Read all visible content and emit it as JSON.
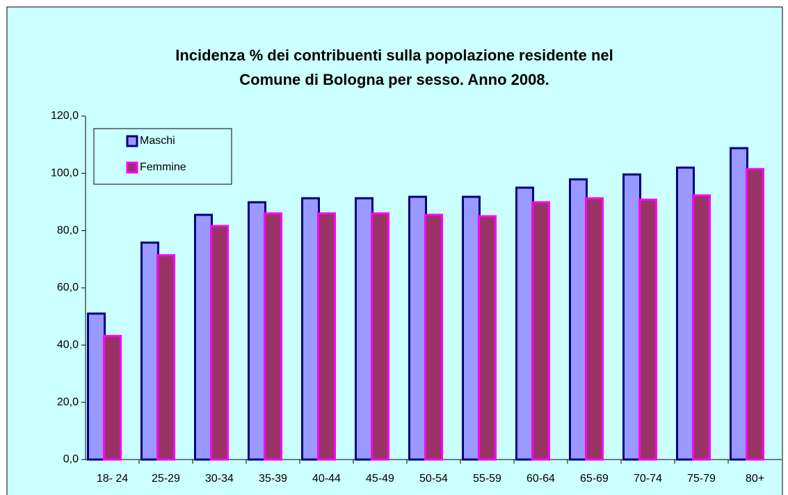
{
  "chart_data": {
    "type": "bar",
    "title": [
      "Incidenza % dei contribuenti sulla popolazione residente nel",
      "Comune di Bologna per sesso. Anno 2008."
    ],
    "categories": [
      "18- 24",
      "25-29",
      "30-34",
      "35-39",
      "40-44",
      "45-49",
      "50-54",
      "55-59",
      "60-64",
      "65-69",
      "70-74",
      "75-79",
      "80+"
    ],
    "series": [
      {
        "name": "Maschi",
        "color": "#9999ff",
        "border": "#000080",
        "values": [
          51.0,
          75.8,
          85.5,
          89.9,
          91.3,
          91.3,
          91.8,
          91.8,
          95.0,
          97.9,
          99.6,
          102.0,
          108.8
        ]
      },
      {
        "name": "Femmine",
        "color": "#993366",
        "border": "#ff00ff",
        "values": [
          43.2,
          71.4,
          81.6,
          86.0,
          86.0,
          86.0,
          85.5,
          85.0,
          89.9,
          91.3,
          90.8,
          92.3,
          101.5
        ]
      }
    ],
    "ylim": [
      0,
      120
    ],
    "yticks": [
      {
        "value": 0,
        "label": "0,0"
      },
      {
        "value": 20,
        "label": "20,0"
      },
      {
        "value": 40,
        "label": "40,0"
      },
      {
        "value": 60,
        "label": "60,0"
      },
      {
        "value": 80,
        "label": "80,0"
      },
      {
        "value": 100,
        "label": "100,0"
      },
      {
        "value": 120,
        "label": "120,0"
      }
    ],
    "grid": false,
    "legend": "top-left"
  }
}
